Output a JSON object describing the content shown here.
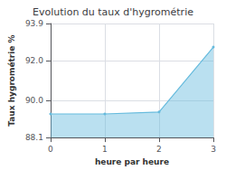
{
  "chart_data": {
    "type": "line",
    "title": "Evolution du taux d'hygrométrie",
    "x_label": "heure par heure",
    "y_label": "Taux hygrométrie %",
    "x": [
      0,
      1,
      2,
      3
    ],
    "values": [
      89.3,
      89.3,
      89.4,
      92.7
    ],
    "color": "#66bbdd",
    "marker": "circle",
    "xlim": [
      0,
      3
    ],
    "xticks": [
      0,
      1,
      2,
      3
    ],
    "ylim": [
      88.1,
      93.9
    ],
    "yticks": [
      88.1,
      {
        "value": 90,
        "label": "90.0"
      },
      {
        "value": 92,
        "label": "92.0"
      },
      93.9
    ],
    "grid": true
  }
}
